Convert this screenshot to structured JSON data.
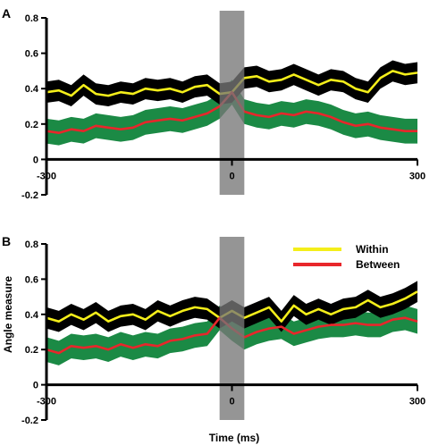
{
  "chart_data": [
    {
      "type": "line",
      "panel": "A",
      "xlabel": "",
      "ylabel": "",
      "xlim": [
        -300,
        300
      ],
      "ylim": [
        -0.2,
        0.8
      ],
      "x_ticks": [
        "-300",
        "0",
        "300"
      ],
      "y_ticks": [
        "-0.2",
        "0",
        "0.2",
        "0.4",
        "0.6",
        "0.8"
      ],
      "shaded_window": [
        -20,
        20
      ],
      "x": [
        -300,
        -280,
        -260,
        -240,
        -220,
        -200,
        -180,
        -160,
        -140,
        -120,
        -100,
        -80,
        -60,
        -40,
        -20,
        0,
        20,
        40,
        60,
        80,
        100,
        120,
        140,
        160,
        180,
        200,
        220,
        240,
        260,
        280,
        300
      ],
      "series": [
        {
          "color": "#f4ee1a",
          "band_color": "#000000",
          "band_half_width": 0.06,
          "values": [
            0.38,
            0.39,
            0.36,
            0.42,
            0.37,
            0.36,
            0.38,
            0.37,
            0.4,
            0.39,
            0.4,
            0.38,
            0.41,
            0.42,
            0.37,
            0.38,
            0.46,
            0.47,
            0.44,
            0.45,
            0.48,
            0.45,
            0.42,
            0.45,
            0.44,
            0.4,
            0.38,
            0.46,
            0.5,
            0.48,
            0.49
          ]
        },
        {
          "color": "#e8262b",
          "band_color": "#1b8a45",
          "band_half_width": 0.07,
          "values": [
            0.16,
            0.15,
            0.17,
            0.16,
            0.19,
            0.18,
            0.17,
            0.18,
            0.21,
            0.22,
            0.23,
            0.22,
            0.24,
            0.26,
            0.3,
            0.38,
            0.27,
            0.25,
            0.24,
            0.26,
            0.25,
            0.27,
            0.26,
            0.24,
            0.21,
            0.19,
            0.2,
            0.18,
            0.17,
            0.16,
            0.16
          ]
        }
      ]
    },
    {
      "type": "line",
      "panel": "B",
      "xlabel": "Time (ms)",
      "ylabel": "Angle measure",
      "xlim": [
        -300,
        300
      ],
      "ylim": [
        -0.2,
        0.8
      ],
      "x_ticks": [
        "-300",
        "0",
        "300"
      ],
      "y_ticks": [
        "-0.2",
        "0",
        "0.2",
        "0.4",
        "0.6",
        "0.8"
      ],
      "shaded_window": [
        -20,
        20
      ],
      "legend": {
        "position": "top-right",
        "entries": [
          {
            "name": "Within",
            "color": "#f4ee1a"
          },
          {
            "name": "Between",
            "color": "#e8262b"
          }
        ]
      },
      "x": [
        -300,
        -280,
        -260,
        -240,
        -220,
        -200,
        -180,
        -160,
        -140,
        -120,
        -100,
        -80,
        -60,
        -40,
        -20,
        0,
        20,
        40,
        60,
        80,
        100,
        120,
        140,
        160,
        180,
        200,
        220,
        240,
        260,
        280,
        300
      ],
      "series": [
        {
          "name": "Within",
          "color": "#f4ee1a",
          "band_color": "#000000",
          "band_half_width": 0.06,
          "values": [
            0.38,
            0.36,
            0.4,
            0.37,
            0.41,
            0.36,
            0.39,
            0.4,
            0.37,
            0.42,
            0.39,
            0.42,
            0.44,
            0.43,
            0.38,
            0.42,
            0.38,
            0.41,
            0.44,
            0.36,
            0.45,
            0.4,
            0.43,
            0.4,
            0.43,
            0.44,
            0.48,
            0.44,
            0.46,
            0.49,
            0.53
          ]
        },
        {
          "name": "Between",
          "color": "#e8262b",
          "band_color": "#1b8a45",
          "band_half_width": 0.07,
          "values": [
            0.2,
            0.18,
            0.22,
            0.21,
            0.22,
            0.2,
            0.23,
            0.21,
            0.23,
            0.22,
            0.25,
            0.26,
            0.28,
            0.29,
            0.38,
            0.32,
            0.27,
            0.3,
            0.32,
            0.33,
            0.29,
            0.31,
            0.33,
            0.34,
            0.34,
            0.35,
            0.34,
            0.34,
            0.37,
            0.38,
            0.36
          ]
        }
      ]
    }
  ]
}
